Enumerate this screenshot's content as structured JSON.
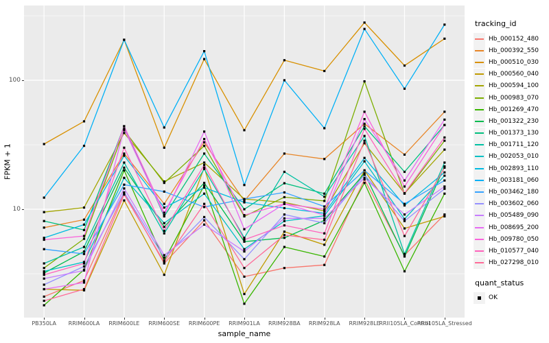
{
  "figure": {
    "y_axis": {
      "label": "FPKM + 1",
      "ticks": [
        {
          "label": "100",
          "value": 100
        },
        {
          "label": "10",
          "value": 10
        }
      ]
    },
    "x_axis": {
      "label": "sample_name"
    },
    "legend": {
      "tracking_title": "tracking_id",
      "quant_title": "quant_status",
      "quant_ok_label": "OK"
    },
    "colors": {
      "panel_bg": "#EBEBEB",
      "grid": "#FFFFFF",
      "tick_text": "#4D4D4D",
      "axis_text": "#000000",
      "point": "#000000",
      "key_bg": "#F2F2F2"
    }
  },
  "chart_data": {
    "type": "line",
    "title": "",
    "xlabel": "sample_name",
    "ylabel": "FPKM + 1",
    "y_scale": "log10",
    "ylim": [
      1.44,
      380
    ],
    "y_breaks": [
      10,
      100
    ],
    "y_minor_breaks": [
      3.16,
      31.6,
      316
    ],
    "grid": true,
    "legend_position": "right",
    "marker": {
      "shape": "square",
      "color": "#000000",
      "legend": "OK"
    },
    "categories": [
      "PB350LA",
      "RRIM600LA",
      "RRIM600LE",
      "RRIM600SE",
      "RRIM600PE",
      "RRIM901LA",
      "RRIM928BA",
      "RRIM928LA",
      "RRIM928LE",
      "RRII105LA_Control",
      "RRII105LA_Stressed"
    ],
    "series": [
      {
        "name": "Hb_000152_480",
        "color": "#F8766D",
        "values": [
          2.1,
          2.8,
          13.4,
          3.8,
          8.2,
          3.0,
          3.5,
          3.7,
          17,
          4.4,
          9.1
        ]
      },
      {
        "name": "Hb_000392_550",
        "color": "#E88526",
        "values": [
          7.2,
          8.3,
          27,
          11,
          33,
          11.6,
          27,
          24.5,
          46,
          26.5,
          57
        ]
      },
      {
        "name": "Hb_000510_030",
        "color": "#D89000",
        "values": [
          32,
          48,
          206,
          30,
          146,
          41,
          143,
          118,
          280,
          130,
          210
        ]
      },
      {
        "name": "Hb_000560_040",
        "color": "#C09B00",
        "values": [
          2.4,
          2.35,
          11.7,
          3.1,
          21,
          2.2,
          6.7,
          5.3,
          20,
          7.1,
          8.8
        ]
      },
      {
        "name": "Hb_000594_100",
        "color": "#A3A500",
        "values": [
          9.5,
          10.3,
          39,
          16.4,
          23,
          12,
          11.3,
          9.7,
          32.5,
          13.3,
          29
        ]
      },
      {
        "name": "Hb_000983_070",
        "color": "#7CAE00",
        "values": [
          3.5,
          5.9,
          41,
          16.0,
          31,
          8.8,
          12.4,
          11.6,
          98,
          13.2,
          34
        ]
      },
      {
        "name": "Hb_001269_470",
        "color": "#39B600",
        "values": [
          1.8,
          3.4,
          20,
          4.0,
          15.3,
          1.85,
          5.1,
          4.3,
          16,
          3.3,
          13.2
        ]
      },
      {
        "name": "Hb_001322_230",
        "color": "#00BB4E",
        "values": [
          3.2,
          4.7,
          21,
          7.3,
          16,
          5.6,
          6.0,
          8.2,
          19,
          4.3,
          21.5
        ]
      },
      {
        "name": "Hb_001373_130",
        "color": "#00BF7D",
        "values": [
          8.1,
          6.9,
          44,
          8.8,
          27,
          10,
          15.9,
          13.2,
          44,
          19.5,
          45
        ]
      },
      {
        "name": "Hb_001711_120",
        "color": "#00C1A3",
        "values": [
          3.8,
          5.1,
          23,
          6.5,
          20.5,
          6.0,
          19.5,
          12.5,
          37,
          4.5,
          23
        ]
      },
      {
        "name": "Hb_002053_010",
        "color": "#00BFC4",
        "values": [
          3.3,
          3.9,
          17.5,
          7.8,
          13.2,
          4.9,
          8.1,
          8.9,
          23.5,
          8.4,
          18.2
        ]
      },
      {
        "name": "Hb_002893_110",
        "color": "#00BAE0",
        "values": [
          6.0,
          7.6,
          26,
          10.3,
          14.7,
          11.3,
          10.2,
          9.3,
          25,
          10.7,
          19.3
        ]
      },
      {
        "name": "Hb_003181_060",
        "color": "#00B0F6",
        "values": [
          12.3,
          31,
          206,
          43,
          168,
          15.4,
          100,
          42.5,
          250,
          86,
          270
        ]
      },
      {
        "name": "Hb_003462_180",
        "color": "#35A2FF",
        "values": [
          4.9,
          4.5,
          15.5,
          13.7,
          10.4,
          12,
          13.5,
          10.5,
          20,
          11,
          16.7
        ]
      },
      {
        "name": "Hb_003602_060",
        "color": "#9590FF",
        "values": [
          2.6,
          3.6,
          13.5,
          4.2,
          8.7,
          4.1,
          9.1,
          7.8,
          18.5,
          8.1,
          14.4
        ]
      },
      {
        "name": "Hb_005489_090",
        "color": "#C77CFF",
        "values": [
          2.9,
          3.35,
          14.5,
          4.4,
          7.6,
          4.7,
          8.5,
          8.5,
          17.5,
          9.1,
          15
        ]
      },
      {
        "name": "Hb_008695_200",
        "color": "#E76BF3",
        "values": [
          2.4,
          2.7,
          42,
          9.0,
          40,
          7.0,
          11.0,
          9.0,
          50,
          16.7,
          49.5
        ]
      },
      {
        "name": "Hb_009780_050",
        "color": "#FA62DB",
        "values": [
          5.8,
          6.2,
          44,
          9.4,
          35,
          9.0,
          11.0,
          10.0,
          57,
          15,
          45
        ]
      },
      {
        "name": "Hb_010577_040",
        "color": "#FF62BC",
        "values": [
          3.1,
          3.8,
          30,
          6.8,
          22,
          5.8,
          7.5,
          6.5,
          42,
          13.3,
          36
        ]
      },
      {
        "name": "Hb_027298_010",
        "color": "#FF6A98",
        "values": [
          1.95,
          2.4,
          13,
          3.9,
          11,
          3.5,
          6.3,
          5.8,
          34,
          6.2,
          21
        ]
      }
    ]
  }
}
